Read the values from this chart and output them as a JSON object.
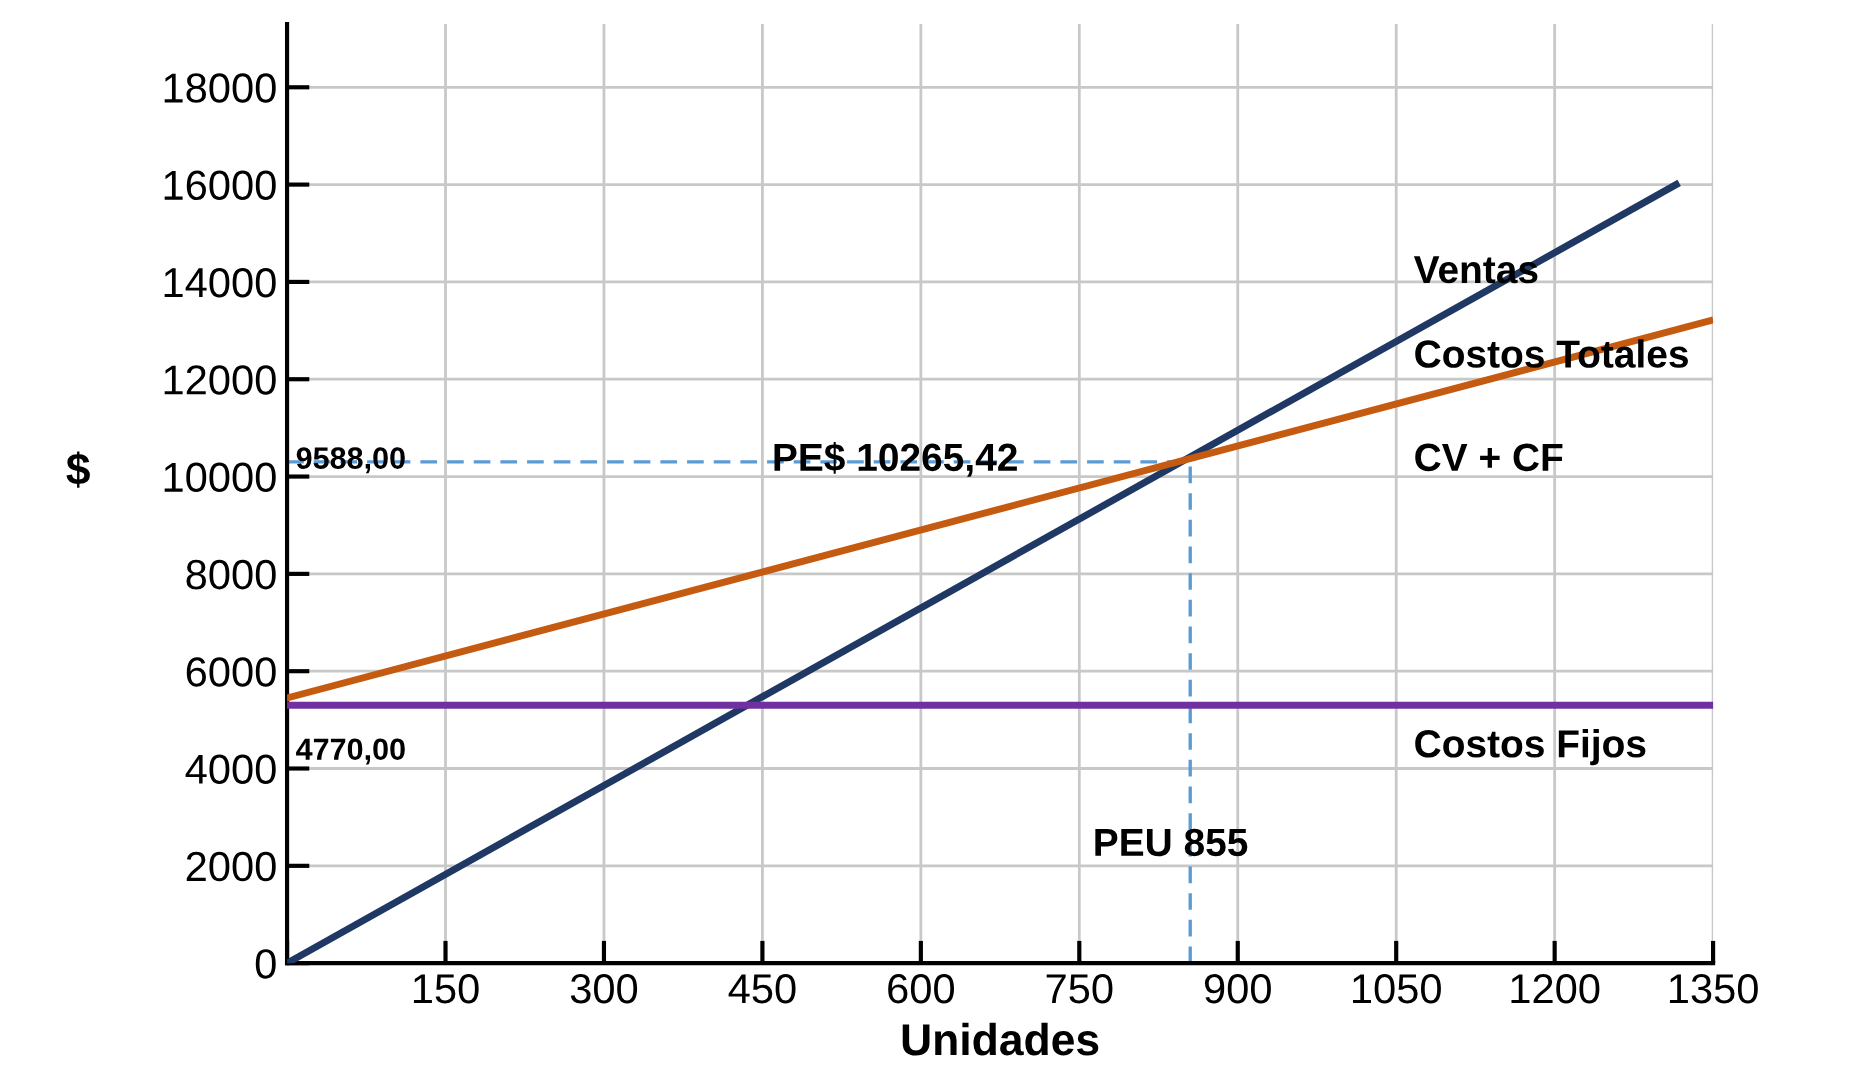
{
  "chart_data": {
    "type": "line",
    "xlabel": "Unidades",
    "ylabel": "$",
    "xlim": [
      0,
      1350
    ],
    "ylim": [
      0,
      19300
    ],
    "xticks": [
      {
        "value": 0,
        "label": null
      },
      150,
      300,
      450,
      600,
      750,
      900,
      1050,
      1200,
      1350
    ],
    "yticks": [
      0,
      2000,
      4000,
      6000,
      8000,
      10000,
      12000,
      14000,
      16000,
      18000
    ],
    "grid": true,
    "legend": false,
    "marker": "none",
    "series": [
      {
        "color": "#1f3864",
        "x": [
          0,
          1315
        ],
        "values": [
          0,
          16000
        ],
        "line_style": "solid"
      },
      {
        "color": "#c55a11",
        "x": [
          0,
          1347
        ],
        "values": [
          5450,
          13200
        ],
        "line_style": "solid"
      },
      {
        "color": "#7030a0",
        "x": [
          0,
          1350
        ],
        "values": [
          5300,
          5300
        ],
        "line_style": "solid"
      },
      {
        "color": "#5b9bd5",
        "x": [
          0,
          855
        ],
        "values": [
          10300,
          10300
        ],
        "line_style": "dashed"
      },
      {
        "color": "#5b9bd5",
        "x": [
          855,
          855
        ],
        "values": [
          0,
          10300
        ],
        "line_style": "dashed"
      }
    ],
    "annotations": [
      "Ventas",
      "Costos Totales",
      "CV + CF",
      "Costos Fijos",
      "PEU 855",
      "PE$ 10265,42",
      "9588,00",
      "4770,00"
    ]
  }
}
